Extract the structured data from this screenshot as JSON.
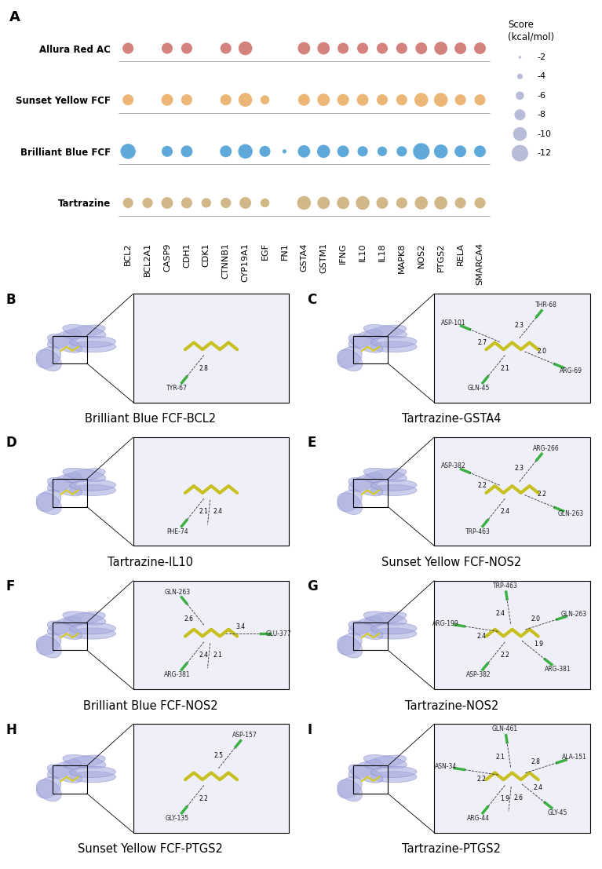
{
  "chart_data": {
    "type": "scatter",
    "panel": "A",
    "categories": [
      "BCL2",
      "BCL2A1",
      "CASP9",
      "CDH1",
      "CDK1",
      "CTNNB1",
      "CYP19A1",
      "EGF",
      "FN1",
      "GSTA4",
      "GSTM1",
      "IFNG",
      "IL10",
      "IL18",
      "MAPK8",
      "NOS2",
      "PTGS2",
      "RELA",
      "SMARCA4"
    ],
    "series": [
      {
        "name": "Allura Red AC",
        "color": "#D4827D",
        "values": [
          -8,
          null,
          -8,
          -8,
          null,
          -8,
          -10,
          null,
          null,
          -9,
          -9,
          -8,
          -8,
          -8,
          -8,
          -8.5,
          -9.5,
          -8.5,
          -8.5
        ]
      },
      {
        "name": "Sunset Yellow FCF",
        "color": "#EBB676",
        "values": [
          -8,
          null,
          -8.5,
          -8,
          null,
          -8,
          -10,
          -6.5,
          null,
          -8.5,
          -9,
          -8.5,
          -8.5,
          -8,
          -8,
          -10,
          -10,
          -8,
          -8
        ]
      },
      {
        "name": "Brilliant Blue FCF",
        "color": "#5FA9DA",
        "values": [
          -11,
          null,
          -8,
          -8.5,
          null,
          -8.5,
          -10.5,
          -8,
          -3,
          -9,
          -9.5,
          -8.5,
          -7.5,
          -7,
          -7.5,
          -12,
          -10,
          -8.5,
          -8.5
        ]
      },
      {
        "name": "Tartrazine",
        "color": "#D2B888",
        "values": [
          -7.5,
          -7.5,
          -8.5,
          -8,
          -7,
          -7.5,
          -8.5,
          -6.5,
          null,
          -10,
          -9,
          -9,
          -10,
          -8.5,
          -8,
          -9.5,
          -9.5,
          -8,
          -8
        ]
      }
    ],
    "size_legend": {
      "title": "Score\n(kcal/mol)",
      "values": [
        -2,
        -4,
        -6,
        -8,
        -10,
        -12
      ],
      "color": "#B8BCD8"
    },
    "legend": "upper left"
  },
  "docking_panels": [
    {
      "letter": "B",
      "caption": "Brilliant Blue FCF-BCL2",
      "residues": [
        "TYR-67"
      ],
      "distances": [
        2.8
      ]
    },
    {
      "letter": "C",
      "caption": "Tartrazine-GSTA4",
      "residues": [
        "GLN-45",
        "ARG-69",
        "THR-68",
        "ASP-101"
      ],
      "distances": [
        2.1,
        2.0,
        2.3,
        2.7
      ]
    },
    {
      "letter": "D",
      "caption": "Tartrazine-IL10",
      "residues": [
        "PHE-74"
      ],
      "distances": [
        2.1,
        2.4
      ]
    },
    {
      "letter": "E",
      "caption": "Sunset Yellow FCF-NOS2",
      "residues": [
        "TRP-463",
        "GLN-263",
        "ARG-266",
        "ASP-382"
      ],
      "distances": [
        2.4,
        2.2,
        2.3,
        2.2
      ]
    },
    {
      "letter": "F",
      "caption": "Brilliant Blue FCF-NOS2",
      "residues": [
        "ARG-381",
        "GLU-377",
        "GLN-263"
      ],
      "distances": [
        2.4,
        3.4,
        2.6,
        2.1
      ]
    },
    {
      "letter": "G",
      "caption": "Tartrazine-NOS2",
      "residues": [
        "ASP-382",
        "ARG-381",
        "GLN-263",
        "TRP-463",
        "ARG-199"
      ],
      "distances": [
        2.2,
        1.9,
        2.0,
        2.4,
        2.4
      ]
    },
    {
      "letter": "H",
      "caption": "Sunset Yellow FCF-PTGS2",
      "residues": [
        "GLY-135",
        "ASP-157"
      ],
      "distances": [
        2.2,
        2.5
      ]
    },
    {
      "letter": "I",
      "caption": "Tartrazine-PTGS2",
      "residues": [
        "ARG-44",
        "GLY-45",
        "ALA-151",
        "GLN-461",
        "ASN-34"
      ],
      "distances": [
        1.9,
        2.4,
        2.8,
        2.1,
        2.2,
        2.6
      ]
    }
  ]
}
